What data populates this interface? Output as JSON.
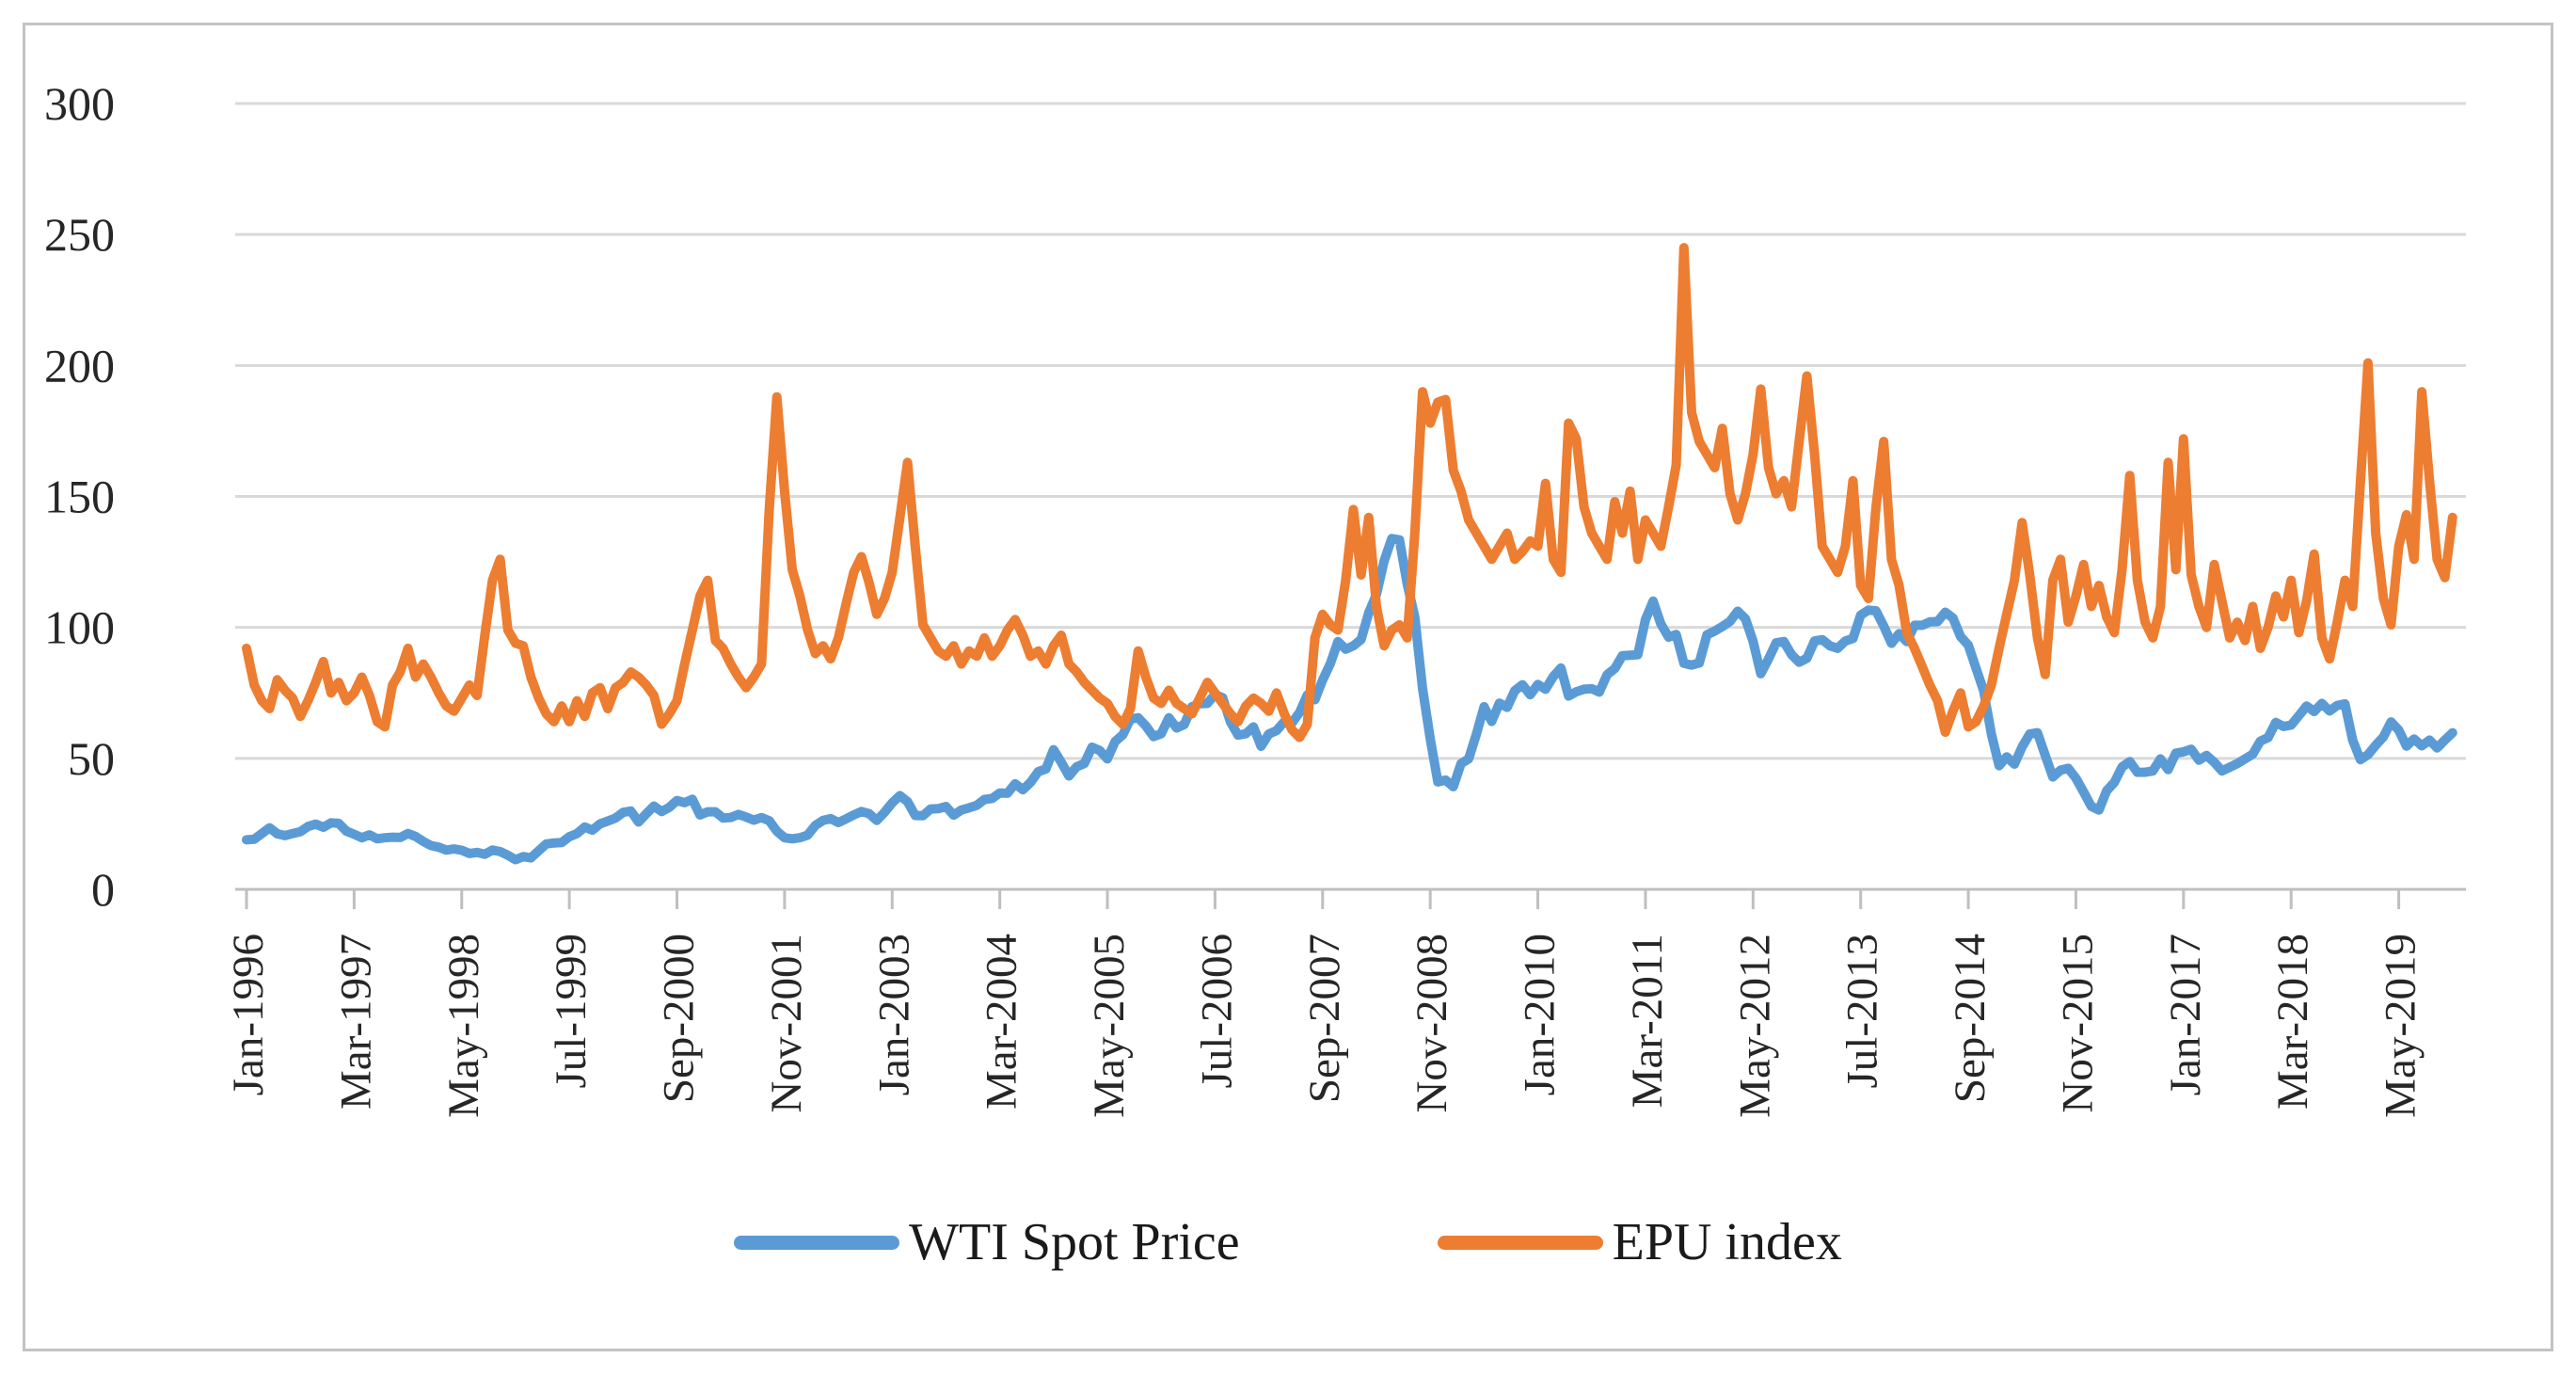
{
  "chart_data": {
    "type": "line",
    "title": "",
    "xlabel": "",
    "ylabel": "",
    "x_start": "Jan-1996",
    "x_end": "Dec-2019",
    "frequency": "monthly",
    "x_tick_interval_months": 14,
    "x_tick_labels": [
      "Jan-1996",
      "Mar-1997",
      "May-1998",
      "Jul-1999",
      "Sep-2000",
      "Nov-2001",
      "Jan-2003",
      "Mar-2004",
      "May-2005",
      "Jul-2006",
      "Sep-2007",
      "Nov-2008",
      "Jan-2010",
      "Mar-2011",
      "May-2012",
      "Jul-2013",
      "Sep-2014",
      "Nov-2015",
      "Jan-2017",
      "Mar-2018",
      "May-2019"
    ],
    "ylim": [
      0,
      300
    ],
    "y_ticks": [
      0,
      50,
      100,
      150,
      200,
      250,
      300
    ],
    "grid": "horizontal",
    "legend_position": "bottom",
    "colors": {
      "grid": "#d9d9d9",
      "axis": "#bfbfbf",
      "tick": "#bfbfbf",
      "text": "#262626"
    },
    "series": [
      {
        "name": "WTI Spot Price",
        "color": "#5b9bd5",
        "values": [
          18.9,
          19.1,
          21.3,
          23.5,
          21.2,
          20.5,
          21.3,
          22.0,
          24.0,
          24.9,
          23.7,
          25.4,
          25.2,
          22.2,
          21.0,
          19.7,
          20.8,
          19.3,
          19.7,
          19.9,
          19.8,
          21.3,
          20.2,
          18.3,
          16.7,
          16.1,
          15.0,
          15.4,
          14.9,
          13.7,
          14.1,
          13.4,
          15.0,
          14.4,
          13.0,
          11.3,
          12.5,
          12.0,
          14.7,
          17.3,
          17.7,
          17.9,
          20.1,
          21.3,
          23.8,
          22.6,
          25.0,
          26.1,
          27.2,
          29.4,
          29.9,
          25.7,
          28.8,
          31.8,
          29.7,
          31.3,
          33.9,
          33.1,
          34.4,
          28.4,
          29.6,
          29.6,
          27.2,
          27.4,
          28.6,
          27.6,
          26.4,
          27.4,
          26.2,
          22.2,
          19.7,
          19.3,
          19.7,
          20.7,
          24.4,
          26.3,
          27.0,
          25.5,
          26.9,
          28.4,
          29.7,
          28.9,
          26.3,
          29.4,
          33.0,
          35.8,
          33.5,
          28.2,
          28.1,
          30.7,
          30.8,
          31.6,
          28.3,
          30.3,
          31.1,
          32.1,
          34.3,
          34.7,
          36.8,
          36.7,
          40.3,
          38.0,
          40.8,
          44.9,
          46.0,
          53.3,
          48.5,
          43.3,
          46.8,
          48.0,
          54.3,
          53.0,
          49.8,
          56.4,
          59.0,
          65.0,
          65.5,
          62.4,
          58.3,
          59.4,
          65.5,
          61.6,
          62.9,
          69.7,
          70.9,
          71.0,
          74.4,
          73.1,
          63.9,
          58.9,
          59.4,
          62.0,
          54.6,
          59.3,
          60.6,
          64.0,
          63.5,
          67.5,
          74.2,
          72.4,
          79.9,
          86.2,
          94.6,
          91.7,
          93.0,
          95.4,
          105.6,
          112.6,
          125.4,
          133.9,
          133.4,
          116.6,
          103.9,
          76.7,
          57.4,
          41.0,
          41.7,
          39.2,
          48.0,
          49.8,
          59.2,
          69.7,
          64.1,
          71.1,
          69.5,
          75.8,
          78.1,
          74.3,
          78.2,
          76.4,
          81.2,
          84.5,
          73.8,
          75.4,
          76.4,
          76.6,
          75.3,
          81.9,
          84.3,
          89.2,
          89.4,
          89.6,
          102.9,
          110.0,
          101.3,
          96.3,
          97.3,
          86.3,
          85.6,
          86.4,
          97.2,
          98.6,
          100.3,
          102.3,
          106.2,
          103.3,
          94.7,
          82.3,
          87.9,
          94.1,
          94.6,
          89.6,
          86.7,
          88.2,
          94.8,
          95.3,
          93.0,
          92.0,
          94.8,
          95.8,
          104.7,
          106.6,
          106.3,
          100.5,
          93.9,
          97.6,
          94.6,
          100.8,
          100.8,
          102.1,
          102.2,
          105.8,
          103.6,
          96.5,
          93.2,
          84.4,
          75.8,
          59.3,
          47.2,
          50.6,
          47.8,
          54.4,
          59.3,
          59.8,
          51.2,
          42.9,
          45.5,
          46.2,
          42.4,
          37.2,
          31.7,
          30.3,
          37.6,
          40.8,
          46.7,
          48.8,
          44.7,
          44.7,
          45.2,
          49.8,
          45.7,
          52.0,
          52.5,
          53.5,
          49.3,
          51.1,
          48.5,
          45.2,
          46.6,
          48.0,
          49.8,
          51.6,
          56.6,
          57.9,
          63.7,
          62.2,
          62.7,
          66.3,
          70.0,
          67.9,
          71.0,
          68.1,
          70.2,
          70.8,
          57.0,
          49.5,
          51.4,
          55.0,
          58.2,
          63.9,
          60.8,
          54.7,
          57.4,
          54.8,
          57.0,
          54.0,
          57.0,
          59.8
        ]
      },
      {
        "name": "EPU index",
        "color": "#ed7d31",
        "values": [
          92,
          78,
          72,
          69,
          80,
          76,
          73,
          66,
          72,
          79,
          87,
          75,
          79,
          72,
          75,
          81,
          74,
          64,
          62,
          78,
          83,
          92,
          81,
          86,
          81,
          75,
          70,
          68,
          73,
          78,
          74,
          97,
          118,
          126,
          99,
          94,
          93,
          81,
          73,
          67,
          64,
          70,
          64,
          72,
          66,
          75,
          77,
          69,
          77,
          79,
          83,
          81,
          78,
          74,
          63,
          67,
          72,
          86,
          99,
          112,
          118,
          95,
          92,
          86,
          81,
          77,
          81,
          86,
          145,
          188,
          152,
          122,
          112,
          99,
          90,
          93,
          88,
          96,
          109,
          121,
          127,
          117,
          105,
          111,
          121,
          142,
          163,
          131,
          101,
          96,
          91,
          89,
          93,
          86,
          91,
          89,
          96,
          89,
          93,
          99,
          103,
          97,
          89,
          91,
          86,
          93,
          97,
          86,
          83,
          79,
          76,
          73,
          71,
          66,
          63,
          69,
          91,
          81,
          73,
          71,
          76,
          71,
          69,
          67,
          73,
          79,
          75,
          71,
          67,
          64,
          70,
          73,
          71,
          68,
          75,
          67,
          61,
          58,
          63,
          96,
          105,
          101,
          99,
          118,
          145,
          120,
          142,
          108,
          93,
          99,
          101,
          96,
          136,
          190,
          178,
          186,
          187,
          160,
          152,
          141,
          136,
          131,
          126,
          131,
          136,
          126,
          129,
          133,
          131,
          155,
          126,
          121,
          178,
          172,
          146,
          136,
          131,
          126,
          148,
          136,
          152,
          126,
          141,
          136,
          131,
          146,
          162,
          245,
          182,
          171,
          166,
          161,
          176,
          151,
          141,
          151,
          166,
          191,
          161,
          151,
          156,
          146,
          171,
          196,
          166,
          131,
          126,
          121,
          131,
          156,
          116,
          111,
          146,
          171,
          126,
          116,
          98,
          92,
          85,
          78,
          72,
          60,
          68,
          75,
          62,
          64,
          70,
          78,
          92,
          105,
          118,
          140,
          120,
          96,
          82,
          118,
          126,
          102,
          112,
          124,
          108,
          116,
          104,
          98,
          122,
          158,
          118,
          102,
          96,
          108,
          163,
          122,
          172,
          120,
          108,
          100,
          124,
          110,
          96,
          102,
          95,
          108,
          92,
          100,
          112,
          104,
          118,
          98,
          110,
          128,
          96,
          88,
          102,
          118,
          108,
          155,
          201,
          136,
          111,
          101,
          131,
          143,
          126,
          190,
          156,
          126,
          119,
          142
        ]
      }
    ]
  },
  "legend": {
    "items": [
      {
        "label": "WTI Spot Price",
        "color": "#5b9bd5"
      },
      {
        "label": "EPU index",
        "color": "#ed7d31"
      }
    ]
  }
}
